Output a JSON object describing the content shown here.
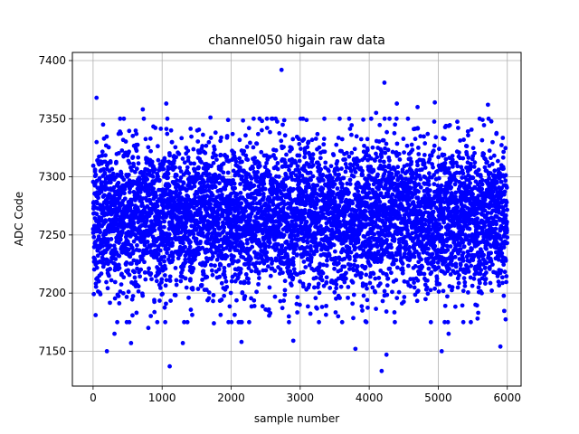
{
  "chart_data": {
    "type": "scatter",
    "title": "channel050 higain raw data",
    "xlabel": "sample number",
    "ylabel": "ADC Code",
    "xlim": [
      -300,
      6200
    ],
    "ylim": [
      7120,
      7407
    ],
    "x_ticks": [
      0,
      1000,
      2000,
      3000,
      4000,
      5000,
      6000
    ],
    "y_ticks": [
      7150,
      7200,
      7250,
      7300,
      7350,
      7400
    ],
    "grid": true,
    "marker_color": "#0000ff",
    "n_samples": 6000,
    "mean": 7265,
    "std_dev": 32,
    "series": [
      {
        "x": [
          50,
          200,
          310,
          550,
          720,
          800,
          1060,
          1110,
          1300,
          1750,
          2150,
          2730,
          2900,
          3800,
          3900,
          4180,
          4220,
          4250,
          4400,
          4700,
          4950,
          5050,
          5150,
          5720,
          5900,
          1700,
          2600,
          3350,
          3550,
          4100
        ],
        "y": [
          7368,
          7150,
          7165,
          7157,
          7358,
          7170,
          7363,
          7137,
          7157,
          7174,
          7158,
          7392,
          7159,
          7152,
          7185,
          7133,
          7381,
          7147,
          7363,
          7360,
          7364,
          7150,
          7165,
          7362,
          7154,
          7351,
          7350,
          7350,
          7180,
          7355
        ]
      }
    ]
  }
}
